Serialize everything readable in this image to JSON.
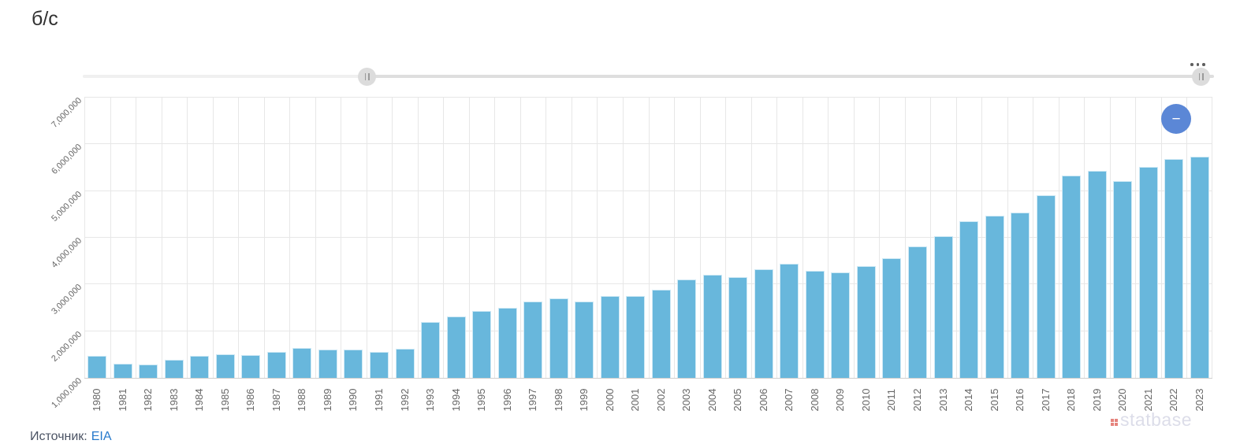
{
  "title": "б/с",
  "chart_data": {
    "type": "bar",
    "title": "б/с",
    "xlabel": "",
    "ylabel": "",
    "ylim": [
      1000000,
      7000000
    ],
    "ytick_step": 1000000,
    "ytick_labels": [
      "1,000,000",
      "2,000,000",
      "3,000,000",
      "4,000,000",
      "5,000,000",
      "6,000,000",
      "7,000,000"
    ],
    "grid": true,
    "legend": false,
    "bar_color": "#68b7dc",
    "categories": [
      1980,
      1981,
      1982,
      1983,
      1984,
      1985,
      1986,
      1987,
      1988,
      1989,
      1990,
      1991,
      1992,
      1993,
      1994,
      1995,
      1996,
      1997,
      1998,
      1999,
      2000,
      2001,
      2002,
      2003,
      2004,
      2005,
      2006,
      2007,
      2008,
      2009,
      2010,
      2011,
      2012,
      2013,
      2014,
      2015,
      2016,
      2017,
      2018,
      2019,
      2020,
      2021,
      2022,
      2023
    ],
    "values": [
      1470000,
      1310000,
      1290000,
      1380000,
      1470000,
      1500000,
      1490000,
      1560000,
      1640000,
      1600000,
      1610000,
      1560000,
      1630000,
      2200000,
      2320000,
      2430000,
      2500000,
      2630000,
      2710000,
      2640000,
      2760000,
      2760000,
      2880000,
      3110000,
      3200000,
      3150000,
      3330000,
      3440000,
      3300000,
      3260000,
      3390000,
      3560000,
      3810000,
      4030000,
      4360000,
      4470000,
      4540000,
      4910000,
      5330000,
      5440000,
      5210000,
      5510000,
      5680000,
      5730000
    ]
  },
  "slider": {
    "left_handle": "drag",
    "right_handle": "drag",
    "menu": "context-menu"
  },
  "controls": {
    "zoom_out_glyph": "−"
  },
  "watermark": {
    "brand": "statbase"
  },
  "footer": {
    "source_label": "Источник:",
    "source_link": "EIA"
  },
  "colors": {
    "bar": "#68b7dc",
    "accent_button": "#5b87d6",
    "link": "#2679cc",
    "watermark_text": "#dcdde9",
    "watermark_dots": "#e5837c",
    "grid": "#e7e7e7",
    "axis_label": "#666666"
  }
}
